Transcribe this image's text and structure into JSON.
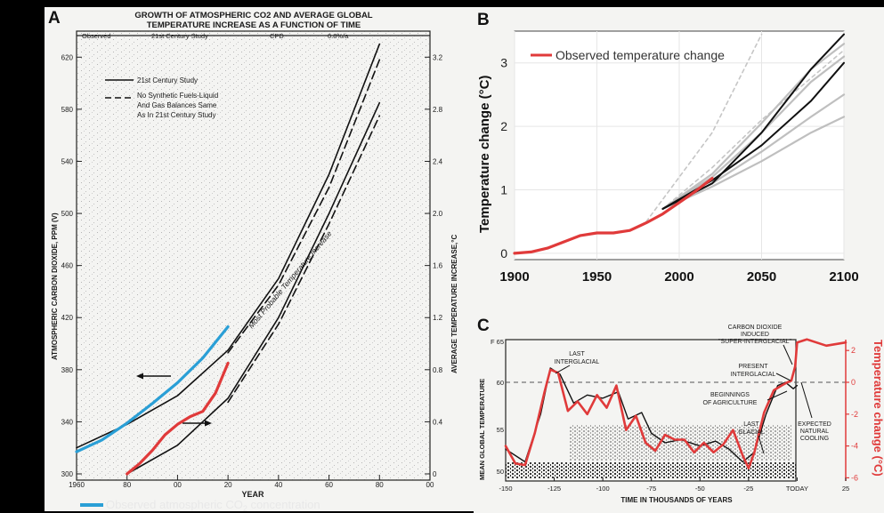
{
  "colors": {
    "background": "#000000",
    "paper": "#f4f4f2",
    "ink": "#1a1a1a",
    "observed_co2": "#2a9fd6",
    "observed_temp": "#e03a3a",
    "projection_gray": "#b8b8b8",
    "projection_dashed": "#c0c0c0",
    "model_black": "#111111"
  },
  "panels": {
    "a_letter": "A",
    "b_letter": "B",
    "c_letter": "C"
  },
  "chart_data": [
    {
      "id": "A",
      "type": "line",
      "title": "GROWTH OF ATMOSPHERIC CO2 AND AVERAGE GLOBAL TEMPERATURE INCREASE AS A FUNCTION OF TIME",
      "title_line1": "GROWTH OF ATMOSPHERIC CO2 AND AVERAGE GLOBAL",
      "title_line2": "TEMPERATURE INCREASE AS A FUNCTION OF TIME",
      "header_bands": [
        "Observed",
        "21st Century Study",
        "CPD",
        "0.8%/a"
      ],
      "xlabel": "YEAR",
      "ylabel_left": "ATMOSPHERIC CARBON DIOXIDE, PPM (V)",
      "ylabel_right": "AVERAGE TEMPERATURE INCREASE,°C",
      "x_ticks": [
        "1960",
        "80",
        "00",
        "20",
        "40",
        "60",
        "80",
        "00"
      ],
      "x_tick_years": [
        1960,
        1980,
        2000,
        2020,
        2040,
        2060,
        2080,
        2100
      ],
      "xlim": [
        1960,
        2100
      ],
      "ylim_left": [
        300,
        640
      ],
      "left_ticks": [
        300,
        340,
        380,
        420,
        460,
        500,
        540,
        580,
        620
      ],
      "right_ticks": [
        "0",
        "0.4",
        "0.8",
        "1.2",
        "1.6",
        "2.0",
        "2.4",
        "2.8",
        "3.2"
      ],
      "right_tick_values": [
        0,
        0.4,
        0.8,
        1.2,
        1.6,
        2.0,
        2.4,
        2.8,
        3.2
      ],
      "legend": [
        {
          "label": "21st Century Study",
          "style": "solid"
        },
        {
          "label": "No Synthetic Fuels-Liquid And Gas Balances Same As In 21st Century Study",
          "lines": [
            "No Synthetic Fuels-Liquid",
            "And Gas Balances Same",
            "As In 21st Century Study"
          ],
          "style": "dashed"
        }
      ],
      "annotation": "Most Probable Temperature Increase",
      "bottom_legend": [
        {
          "label": "Observed atmospheric CO",
          "sub": "2",
          "suffix": " concentration",
          "color": "#2a9fd6"
        },
        {
          "label": "Observed temperature change",
          "color": "#e03a3a"
        }
      ],
      "series": [
        {
          "name": "CO2 21st Century Study",
          "style": "solid",
          "axis": "left",
          "x": [
            1960,
            1980,
            2000,
            2020,
            2040,
            2060,
            2080
          ],
          "y": [
            320,
            338,
            360,
            395,
            450,
            530,
            630
          ]
        },
        {
          "name": "CO2 no synthetic fuels",
          "style": "dashed",
          "axis": "left",
          "x": [
            2020,
            2040,
            2060,
            2080
          ],
          "y": [
            393,
            445,
            520,
            618
          ]
        },
        {
          "name": "Temperature 21st Century Study",
          "style": "solid",
          "axis": "right",
          "x": [
            1980,
            2000,
            2020,
            2040,
            2060,
            2080
          ],
          "y": [
            0,
            0.22,
            0.58,
            1.2,
            2.0,
            2.85
          ]
        },
        {
          "name": "Temperature no synthetic fuels",
          "style": "dashed",
          "axis": "right",
          "x": [
            2020,
            2040,
            2060,
            2080
          ],
          "y": [
            0.55,
            1.15,
            1.92,
            2.75
          ]
        },
        {
          "name": "Observed atmospheric CO2 concentration",
          "color": "#2a9fd6",
          "axis": "left",
          "x": [
            1960,
            1970,
            1980,
            1990,
            2000,
            2010,
            2020
          ],
          "y": [
            317,
            326,
            339,
            354,
            370,
            389,
            413
          ]
        },
        {
          "name": "Observed temperature change",
          "color": "#e03a3a",
          "axis": "right",
          "x": [
            1980,
            1985,
            1990,
            1995,
            2000,
            2005,
            2010,
            2015,
            2020
          ],
          "y": [
            0,
            0.08,
            0.18,
            0.3,
            0.38,
            0.44,
            0.48,
            0.62,
            0.85
          ]
        }
      ]
    },
    {
      "id": "B",
      "type": "line",
      "ylabel": "Temperature change (°C)",
      "xlim": [
        1900,
        2100
      ],
      "ylim": [
        -0.1,
        3.5
      ],
      "x_ticks": [
        1900,
        1950,
        2000,
        2050,
        2100
      ],
      "y_ticks": [
        0,
        1,
        2,
        3
      ],
      "grid": true,
      "legend_position": "top-left",
      "legend": [
        {
          "label": "Observed temperature change",
          "color": "#e03a3a"
        }
      ],
      "series": [
        {
          "name": "Observed temperature change",
          "color": "#e03a3a",
          "x": [
            1900,
            1910,
            1920,
            1930,
            1940,
            1950,
            1960,
            1970,
            1980,
            1990,
            2000,
            2010,
            2020
          ],
          "y": [
            0,
            0.02,
            0.08,
            0.18,
            0.28,
            0.32,
            0.32,
            0.36,
            0.48,
            0.62,
            0.8,
            0.98,
            1.18
          ]
        },
        {
          "model": true,
          "color": "#111111",
          "x": [
            1990,
            2020,
            2050,
            2080,
            2100
          ],
          "y": [
            0.7,
            1.1,
            1.9,
            2.9,
            3.45
          ]
        },
        {
          "model": true,
          "color": "#111111",
          "x": [
            1990,
            2020,
            2050,
            2080,
            2100
          ],
          "y": [
            0.7,
            1.15,
            1.7,
            2.4,
            3.0
          ]
        },
        {
          "model": true,
          "color": "#b8b8b8",
          "x": [
            1990,
            2020,
            2050,
            2080,
            2100
          ],
          "y": [
            0.7,
            1.2,
            1.9,
            2.7,
            3.1
          ]
        },
        {
          "model": true,
          "color": "#b8b8b8",
          "x": [
            1990,
            2020,
            2050,
            2080,
            2100
          ],
          "y": [
            0.7,
            1.1,
            1.6,
            2.15,
            2.5
          ]
        },
        {
          "model": true,
          "color": "#b8b8b8",
          "x": [
            1990,
            2020,
            2050,
            2080,
            2100
          ],
          "y": [
            0.7,
            1.05,
            1.45,
            1.9,
            2.15
          ]
        },
        {
          "model": true,
          "color": "#b8b8b8",
          "x": [
            1990,
            2020,
            2050,
            2080,
            2100
          ],
          "y": [
            0.7,
            1.25,
            2.05,
            2.9,
            3.3
          ]
        },
        {
          "model": true,
          "style": "dashed",
          "color": "#c0c0c0",
          "x": [
            1980,
            2020,
            2050
          ],
          "y": [
            0.5,
            1.9,
            3.45
          ]
        },
        {
          "model": true,
          "style": "dashed",
          "color": "#c0c0c0",
          "x": [
            1990,
            2020,
            2050,
            2100
          ],
          "y": [
            0.7,
            1.35,
            2.1,
            3.2
          ]
        }
      ]
    },
    {
      "id": "C",
      "type": "line",
      "ylabel_left": "MEAN GLOBAL TEMPERATURE",
      "ylabel_right": "Temperature change (°C)",
      "xlabel": "TIME IN THOUSANDS OF YEARS",
      "x_ticks": [
        "-150",
        "-125",
        "-100",
        "-75",
        "-50",
        "-25",
        "TODAY",
        "25"
      ],
      "x_tick_values": [
        -150,
        -125,
        -100,
        -75,
        -50,
        -25,
        0,
        25
      ],
      "xlim": [
        -150,
        25
      ],
      "left_ticks": [
        "F 65",
        "60",
        "55",
        "50"
      ],
      "left_tick_values": [
        65,
        60,
        55,
        50
      ],
      "right_ticks": [
        "2",
        "0",
        "-2",
        "-4",
        "-6"
      ],
      "right_tick_values": [
        2,
        0,
        -2,
        -4,
        -6
      ],
      "ylim_right": [
        -6.5,
        3.5
      ],
      "annotations": [
        {
          "lines": [
            "LAST",
            "INTERGLACIAL"
          ]
        },
        {
          "lines": [
            "CARBON DIOXIDE",
            "INDUCED",
            "\"SUPER-INTERGLACIAL\""
          ]
        },
        {
          "lines": [
            "PRESENT",
            "INTERGLACIAL"
          ]
        },
        {
          "lines": [
            "BEGINNINGS",
            "OF AGRICULTURE"
          ]
        },
        {
          "lines": [
            "LAST",
            "GLACIAL"
          ]
        },
        {
          "lines": [
            "EXPECTED",
            "NATURAL",
            "COOLING"
          ]
        }
      ],
      "series": [
        {
          "name": "Mean global temperature (black)",
          "color": "#111111",
          "x": [
            -150,
            -140,
            -132,
            -127,
            -122,
            -115,
            -108,
            -100,
            -92,
            -87,
            -80,
            -75,
            -68,
            -60,
            -50,
            -42,
            -35,
            -28,
            -22,
            -16,
            -10,
            -6,
            -2,
            0
          ],
          "y": [
            -4.2,
            -5.0,
            -2.0,
            0.9,
            0.5,
            -1.3,
            -0.8,
            -1.0,
            -0.6,
            -2.3,
            -1.9,
            -3.2,
            -3.8,
            -3.6,
            -4.0,
            -3.7,
            -4.2,
            -5.0,
            -4.4,
            -2.0,
            -0.2,
            0.0,
            -0.4,
            -0.2
          ]
        },
        {
          "name": "Temperature change (red)",
          "color": "#e03a3a",
          "x": [
            -150,
            -145,
            -140,
            -135,
            -130,
            -127,
            -123,
            -118,
            -113,
            -108,
            -103,
            -98,
            -93,
            -88,
            -83,
            -78,
            -73,
            -68,
            -63,
            -58,
            -53,
            -48,
            -43,
            -38,
            -33,
            -28,
            -25,
            -22,
            -17,
            -12,
            -8,
            -5,
            -3,
            -1,
            0,
            5,
            15,
            25
          ],
          "y": [
            -4.0,
            -5.1,
            -5.2,
            -3.2,
            -0.6,
            0.8,
            0.6,
            -1.8,
            -1.2,
            -2.0,
            -0.8,
            -1.6,
            -0.2,
            -3.0,
            -2.1,
            -3.8,
            -4.3,
            -3.3,
            -3.6,
            -3.6,
            -4.4,
            -3.8,
            -4.4,
            -3.9,
            -3.0,
            -4.6,
            -5.4,
            -4.4,
            -1.9,
            -0.5,
            -0.2,
            0.0,
            0.1,
            1.0,
            2.5,
            2.7,
            2.3,
            2.5
          ]
        }
      ]
    }
  ]
}
